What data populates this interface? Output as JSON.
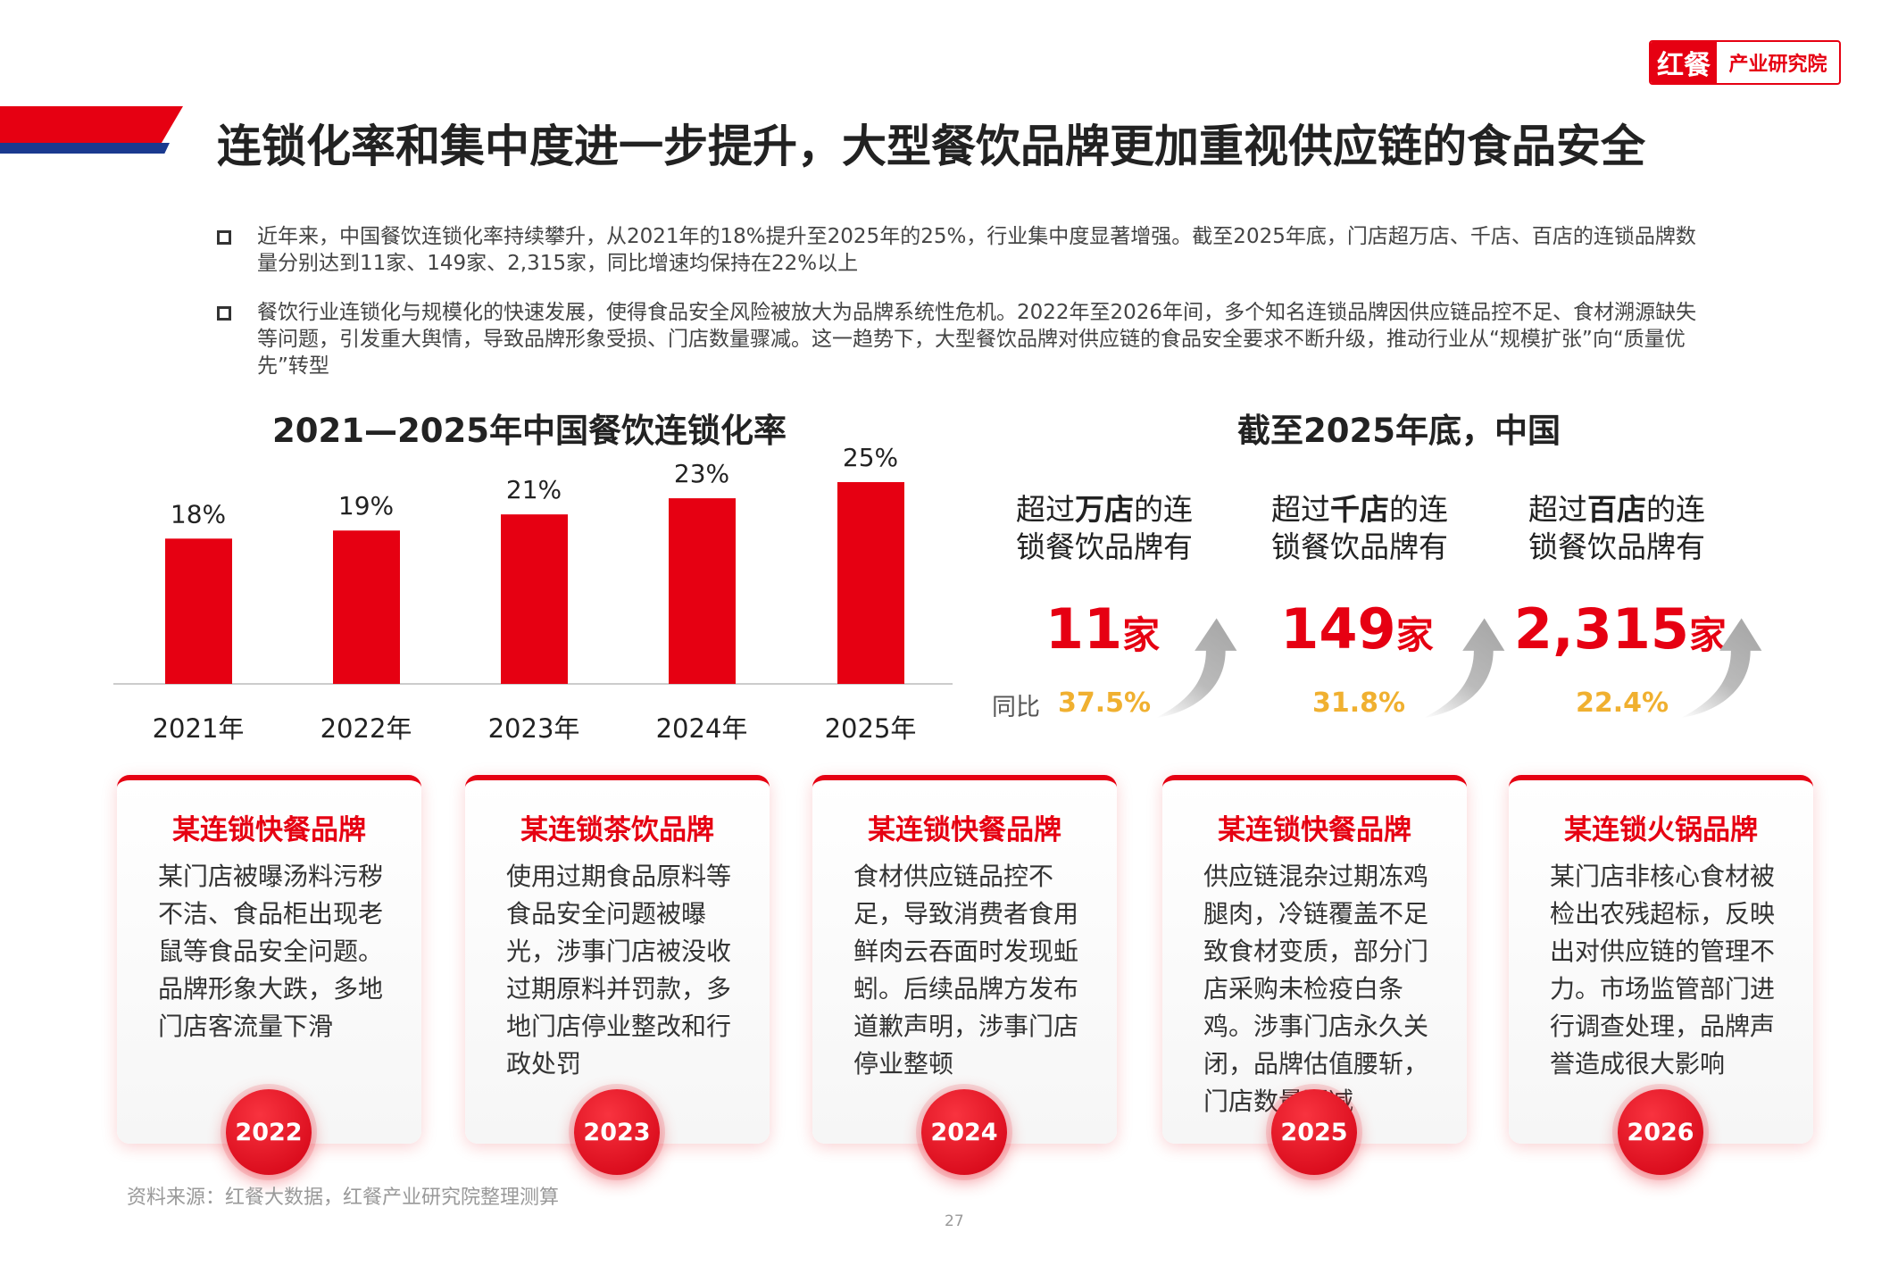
{
  "logo": {
    "brand": "红餐",
    "subtitle": "产业研究院"
  },
  "title": "连锁化率和集中度进一步提升，大型餐饮品牌更加重视供应链的食品安全",
  "bullets": [
    "近年来，中国餐饮连锁化率持续攀升，从2021年的18%提升至2025年的25%，行业集中度显著增强。截至2025年底，门店超万店、千店、百店的连锁品牌数量分别达到11家、149家、2,315家，同比增速均保持在22%以上",
    "餐饮行业连锁化与规模化的快速发展，使得食品安全风险被放大为品牌系统性危机。2022年至2026年间，多个知名连锁品牌因供应链品控不足、食材溯源缺失等问题，引发重大舆情，导致品牌形象受损、门店数量骤减。这一趋势下，大型餐饮品牌对供应链的食品安全要求不断升级，推动行业从“规模扩张”向“质量优先”转型"
  ],
  "chart_data": {
    "type": "bar",
    "title": "2021—2025年中国餐饮连锁化率",
    "categories": [
      "2021年",
      "2022年",
      "2023年",
      "2024年",
      "2025年"
    ],
    "values": [
      18,
      19,
      21,
      23,
      25
    ],
    "labels": [
      "18%",
      "19%",
      "21%",
      "23%",
      "25%"
    ],
    "xlabel": "",
    "ylabel": "",
    "ylim": [
      0,
      25
    ],
    "color": "#e60012",
    "grid": false
  },
  "stats": {
    "title": "截至2025年底，中国",
    "yoy_label": "同比",
    "unit": "家",
    "items": [
      {
        "pre": "超过",
        "bold": "万店",
        "post": "的连",
        "line2": "锁餐饮品牌有",
        "value": "11",
        "yoy": "37.5%"
      },
      {
        "pre": "超过",
        "bold": "千店",
        "post": "的连",
        "line2": "锁餐饮品牌有",
        "value": "149",
        "yoy": "31.8%"
      },
      {
        "pre": "超过",
        "bold": "百店",
        "post": "的连",
        "line2": "锁餐饮品牌有",
        "value": "2,315",
        "yoy": "22.4%"
      }
    ]
  },
  "cards": [
    {
      "title": "某连锁快餐品牌",
      "body": "某门店被曝汤料污秽不洁、食品柜出现老鼠等食品安全问题。品牌形象大跌，多地门店客流量下滑",
      "year": "2022"
    },
    {
      "title": "某连锁茶饮品牌",
      "body": "使用过期食品原料等食品安全问题被曝光，涉事门店被没收过期原料并罚款，多地门店停业整改和行政处罚",
      "year": "2023"
    },
    {
      "title": "某连锁快餐品牌",
      "body": "食材供应链品控不足，导致消费者食用鲜肉云吞面时发现蚯蚓。后续品牌方发布道歉声明，涉事门店停业整顿",
      "year": "2024"
    },
    {
      "title": "某连锁快餐品牌",
      "body": "供应链混杂过期冻鸡腿肉，冷链覆盖不足致食材变质，部分门店采购未检疫白条鸡。涉事门店永久关闭，品牌估值腰斩，门店数量骤减",
      "year": "2025"
    },
    {
      "title": "某连锁火锅品牌",
      "body": "某门店非核心食材被检出农残超标，反映出对供应链的管理不力。市场监管部门进行调查处理，品牌声誉造成很大影响",
      "year": "2026"
    }
  ],
  "source": "资料来源：红餐大数据，红餐产业研究院整理测算",
  "page_number": "27"
}
